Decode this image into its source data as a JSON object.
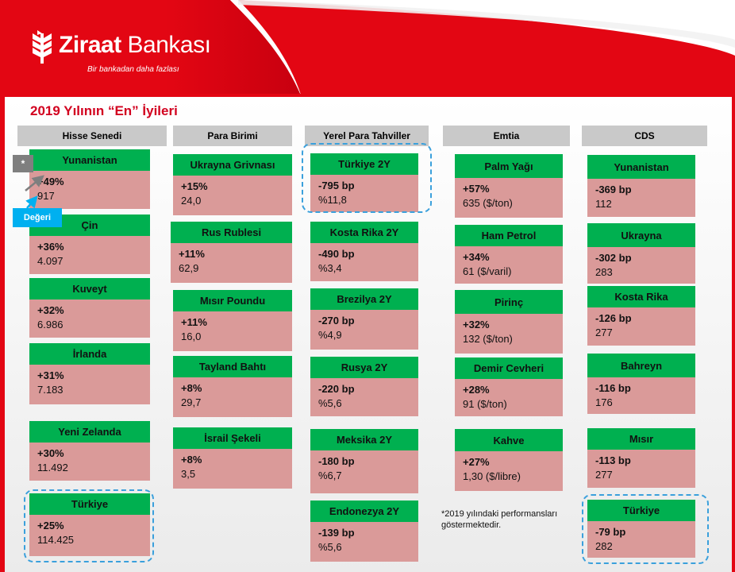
{
  "brand": {
    "name_bold": "Ziraat",
    "name_rest": " Bankası",
    "tagline": "Bir bankadan daha fazlası"
  },
  "title": "2019 Yılının  “En” İyileri",
  "columns": [
    {
      "header": "Hisse Senedi",
      "cards": [
        {
          "name": "Yunanistan",
          "value": "+49%",
          "sub": "917"
        },
        {
          "name": "Çin",
          "value": "+36%",
          "sub": "4.097"
        },
        {
          "name": "Kuveyt",
          "value": "+32%",
          "sub": "6.986"
        },
        {
          "name": "İrlanda",
          "value": "+31%",
          "sub": "7.183"
        },
        {
          "name": "Yeni Zelanda",
          "value": "+30%",
          "sub": "11.492"
        },
        {
          "name": "Türkiye",
          "value": "+25%",
          "sub": "114.425"
        }
      ]
    },
    {
      "header": "Para Birimi",
      "cards": [
        {
          "name": "Ukrayna  Grivnası",
          "value": "+15%",
          "sub": "24,0"
        },
        {
          "name": "Rus Rublesi",
          "value": "+11%",
          "sub": "62,9"
        },
        {
          "name": "Mısır Poundu",
          "value": "+11%",
          "sub": "16,0"
        },
        {
          "name": "Tayland Bahtı",
          "value": "+8%",
          "sub": "29,7"
        },
        {
          "name": "İsrail Şekeli",
          "value": "+8%",
          "sub": "3,5"
        }
      ]
    },
    {
      "header": "Yerel Para Tahviller",
      "cards": [
        {
          "name": "Türkiye 2Y",
          "value": "-795 bp",
          "sub": "%11,8"
        },
        {
          "name": "Kosta Rika 2Y",
          "value": "-490 bp",
          "sub": "%3,4"
        },
        {
          "name": "Brezilya 2Y",
          "value": "-270 bp",
          "sub": "%4,9"
        },
        {
          "name": "Rusya 2Y",
          "value": "-220 bp",
          "sub": "%5,6"
        },
        {
          "name": "Meksika 2Y",
          "value": "-180 bp",
          "sub": "%6,7"
        },
        {
          "name": "Endonezya 2Y",
          "value": "-139 bp",
          "sub": "%5,6"
        }
      ]
    },
    {
      "header": "Emtia",
      "cards": [
        {
          "name": "Palm Yağı",
          "value": "+57%",
          "sub": "635 ($/ton)"
        },
        {
          "name": "Ham Petrol",
          "value": "+34%",
          "sub": "61 ($/varil)"
        },
        {
          "name": "Pirinç",
          "value": "+32%",
          "sub": "132 ($/ton)"
        },
        {
          "name": "Demir Cevheri",
          "value": "+28%",
          "sub": "91 ($/ton)"
        },
        {
          "name": "Kahve",
          "value": "+27%",
          "sub": "1,30 ($/libre)"
        }
      ]
    },
    {
      "header": "CDS",
      "cards": [
        {
          "name": "Yunanistan",
          "value": "-369 bp",
          "sub": "112"
        },
        {
          "name": "Ukrayna",
          "value": "-302 bp",
          "sub": "283"
        },
        {
          "name": "Kosta Rika",
          "value": "-126 bp",
          "sub": "277"
        },
        {
          "name": "Bahreyn",
          "value": "-116 bp",
          "sub": "176"
        },
        {
          "name": "Mısır",
          "value": "-113 bp",
          "sub": "277"
        },
        {
          "name": "Türkiye",
          "value": "-79 bp",
          "sub": "282"
        }
      ]
    }
  ],
  "legend": {
    "star": "*",
    "value_label": "Değeri"
  },
  "footnote": "*2019 yılındaki performansları göstermektedir.",
  "colors": {
    "brand_red": "#e30613",
    "card_green": "#00b050",
    "card_pink": "#da9a99",
    "highlight": "#3aa0dc"
  }
}
